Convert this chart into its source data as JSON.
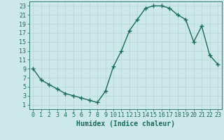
{
  "xlabel": "Humidex (Indice chaleur)",
  "x": [
    0,
    1,
    2,
    3,
    4,
    5,
    6,
    7,
    8,
    9,
    10,
    11,
    12,
    13,
    14,
    15,
    16,
    17,
    18,
    19,
    20,
    21,
    22,
    23
  ],
  "y": [
    9,
    6.5,
    5.5,
    4.5,
    3.5,
    3,
    2.5,
    2,
    1.5,
    4,
    9.5,
    13,
    17.5,
    20,
    22.5,
    23,
    23,
    22.5,
    21,
    20,
    15,
    18.5,
    12,
    10
  ],
  "line_color": "#1a6b5a",
  "marker": "+",
  "marker_size": 4,
  "bg_color": "#cce8e8",
  "grid_color": "#b8d8d8",
  "xlim": [
    -0.5,
    23.5
  ],
  "ylim": [
    0,
    24
  ],
  "yticks": [
    1,
    3,
    5,
    7,
    9,
    11,
    13,
    15,
    17,
    19,
    21,
    23
  ],
  "xticks": [
    0,
    1,
    2,
    3,
    4,
    5,
    6,
    7,
    8,
    9,
    10,
    11,
    12,
    13,
    14,
    15,
    16,
    17,
    18,
    19,
    20,
    21,
    22,
    23
  ],
  "xlabel_fontsize": 7,
  "tick_fontsize": 6,
  "line_width": 1.0,
  "marker_linewidth": 1.0
}
